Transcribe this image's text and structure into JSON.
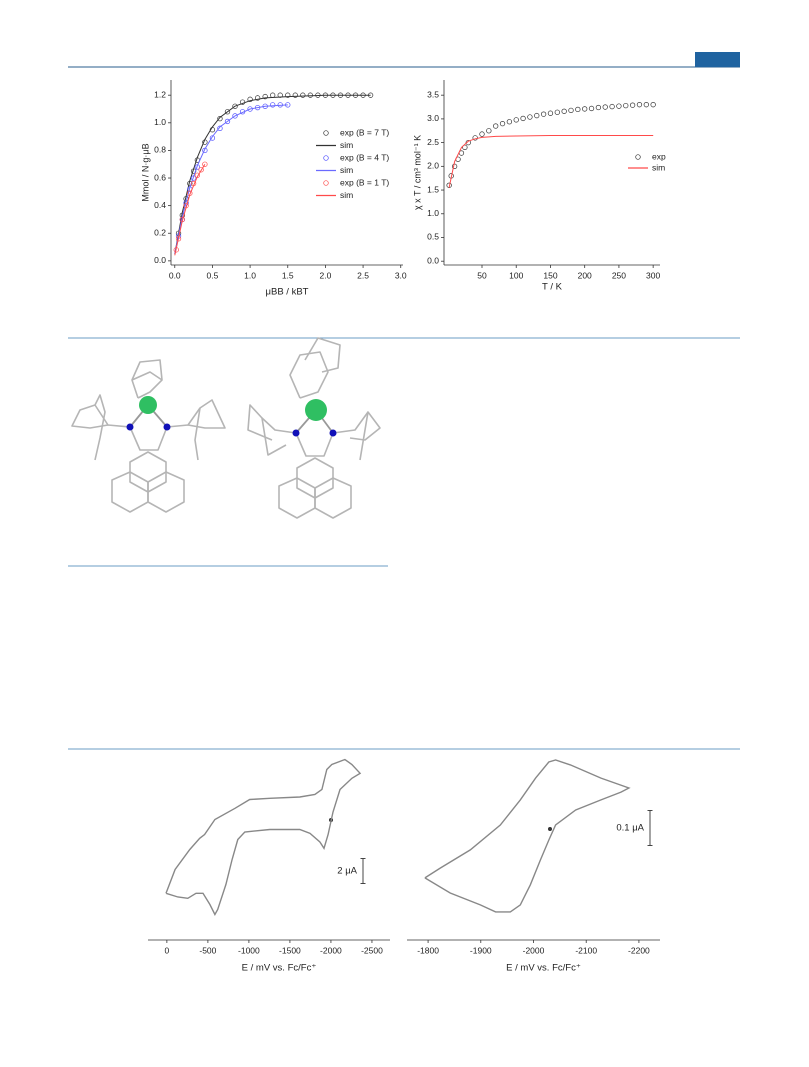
{
  "chart_data": [
    {
      "type": "scatter",
      "xlabel": "μBB / kBT",
      "ylabel": "Mmol / N·g·μB",
      "xlim": [
        -0.05,
        3.03
      ],
      "ylim": [
        -0.03,
        1.31
      ],
      "xticks": [
        {
          "value": 0,
          "label": "0.0"
        },
        0.5,
        {
          "value": 1,
          "label": "1.0"
        },
        1.5,
        {
          "value": 2,
          "label": "2.0"
        },
        2.5,
        {
          "value": 3,
          "label": "3.0"
        }
      ],
      "yticks": [
        {
          "value": 0,
          "label": "0.0"
        },
        0.2,
        0.4,
        0.6,
        0.8,
        {
          "value": 1,
          "label": "1.0"
        },
        1.2
      ],
      "legend": "right",
      "series": [
        {
          "name": "exp (B = 7 T)",
          "color": "#333333",
          "mode": "markers",
          "x": [
            0.05,
            0.1,
            0.15,
            0.2,
            0.25,
            0.3,
            0.4,
            0.5,
            0.6,
            0.7,
            0.8,
            0.9,
            1.0,
            1.1,
            1.2,
            1.3,
            1.4,
            1.5,
            1.6,
            1.7,
            1.8,
            1.9,
            2.0,
            2.1,
            2.2,
            2.3,
            2.4,
            2.5,
            2.6
          ],
          "values": [
            0.2,
            0.33,
            0.45,
            0.56,
            0.65,
            0.73,
            0.86,
            0.95,
            1.03,
            1.08,
            1.12,
            1.15,
            1.17,
            1.18,
            1.19,
            1.2,
            1.2,
            1.2,
            1.2,
            1.2,
            1.2,
            1.2,
            1.2,
            1.2,
            1.2,
            1.2,
            1.2,
            1.2,
            1.2
          ]
        },
        {
          "name": "sim",
          "color": "#333333",
          "mode": "line",
          "x": [
            0,
            0.1,
            0.2,
            0.3,
            0.4,
            0.5,
            0.6,
            0.8,
            1.0,
            1.2,
            1.5,
            2.0,
            2.6
          ],
          "values": [
            0.05,
            0.35,
            0.58,
            0.75,
            0.88,
            0.97,
            1.04,
            1.12,
            1.16,
            1.18,
            1.19,
            1.2,
            1.2
          ]
        },
        {
          "name": "exp (B = 4 T)",
          "color": "#4a4aff",
          "mode": "markers",
          "x": [
            0.05,
            0.1,
            0.15,
            0.2,
            0.25,
            0.3,
            0.4,
            0.5,
            0.6,
            0.7,
            0.8,
            0.9,
            1.0,
            1.1,
            1.2,
            1.3,
            1.4,
            1.5
          ],
          "values": [
            0.18,
            0.3,
            0.42,
            0.52,
            0.6,
            0.68,
            0.8,
            0.89,
            0.96,
            1.01,
            1.05,
            1.08,
            1.1,
            1.11,
            1.12,
            1.13,
            1.13,
            1.13
          ]
        },
        {
          "name": "sim",
          "color": "#6a6aff",
          "mode": "line",
          "x": [
            0,
            0.1,
            0.2,
            0.3,
            0.4,
            0.5,
            0.6,
            0.8,
            1.0,
            1.2,
            1.5
          ],
          "values": [
            0.05,
            0.32,
            0.53,
            0.69,
            0.81,
            0.9,
            0.97,
            1.05,
            1.1,
            1.12,
            1.13
          ]
        },
        {
          "name": "exp (B = 1 T)",
          "color": "#ff4a4a",
          "mode": "markers",
          "x": [
            0.02,
            0.05,
            0.1,
            0.15,
            0.2,
            0.25,
            0.3,
            0.35,
            0.4
          ],
          "values": [
            0.08,
            0.16,
            0.3,
            0.4,
            0.49,
            0.56,
            0.62,
            0.66,
            0.7
          ]
        },
        {
          "name": "sim",
          "color": "#ff4a4a",
          "mode": "line",
          "x": [
            0,
            0.1,
            0.2,
            0.3,
            0.4
          ],
          "values": [
            0.04,
            0.29,
            0.48,
            0.61,
            0.7
          ]
        }
      ]
    },
    {
      "type": "scatter",
      "xlabel": "T / K",
      "ylabel": "χ x T / cm³ mol⁻¹ K",
      "xlim": [
        -5.5,
        310
      ],
      "ylim": [
        -0.08,
        3.82
      ],
      "xticks": [
        50,
        100,
        150,
        200,
        250,
        300
      ],
      "yticks": [
        {
          "value": 0,
          "label": "0.0"
        },
        0.5,
        {
          "value": 1,
          "label": "1.0"
        },
        1.5,
        {
          "value": 2,
          "label": "2.0"
        },
        2.5,
        {
          "value": 3,
          "label": "3.0"
        },
        3.5
      ],
      "legend": "right",
      "series": [
        {
          "name": "exp",
          "color": "#333333",
          "mode": "markers",
          "x": [
            2,
            5,
            10,
            15,
            20,
            25,
            30,
            40,
            50,
            60,
            70,
            80,
            90,
            100,
            110,
            120,
            130,
            140,
            150,
            160,
            170,
            180,
            190,
            200,
            210,
            220,
            230,
            240,
            250,
            260,
            270,
            280,
            290,
            300
          ],
          "values": [
            1.6,
            1.8,
            2.0,
            2.15,
            2.28,
            2.4,
            2.5,
            2.6,
            2.68,
            2.75,
            2.85,
            2.9,
            2.94,
            2.98,
            3.01,
            3.04,
            3.07,
            3.1,
            3.12,
            3.14,
            3.16,
            3.18,
            3.2,
            3.21,
            3.22,
            3.24,
            3.25,
            3.26,
            3.27,
            3.28,
            3.29,
            3.3,
            3.3,
            3.3
          ]
        },
        {
          "name": "sim",
          "color": "#ff4a4a",
          "mode": "line",
          "x": [
            2,
            10,
            20,
            30,
            40,
            50,
            70,
            100,
            150,
            200,
            300
          ],
          "values": [
            1.55,
            2.1,
            2.4,
            2.53,
            2.58,
            2.61,
            2.63,
            2.64,
            2.65,
            2.65,
            2.65
          ]
        }
      ]
    },
    {
      "type": "line",
      "xlabel": "E / mV vs. Fc/Fc⁺",
      "xlim": [
        230,
        -2720
      ],
      "ylim": [
        -7,
        7
      ],
      "xticks": [
        0,
        -500,
        -1000,
        -1500,
        -2000,
        -2500
      ],
      "scale_bar": {
        "value": 2,
        "label": "2 μA"
      },
      "series": [
        {
          "color": "#888888",
          "mode": "line",
          "x": [
            10,
            -100,
            -280,
            -400,
            -460,
            -585,
            -830,
            -1010,
            -1255,
            -1620,
            -1805,
            -1890,
            -1950,
            -2010,
            -2170,
            -2255,
            -2355,
            -2255,
            -2110,
            -2025,
            -1965,
            -1915,
            -1865,
            -1745,
            -1620,
            -1255,
            -950,
            -865,
            -795,
            -720,
            -620,
            -585,
            -525,
            -440,
            -355,
            -255,
            -135,
            10
          ],
          "values": [
            -4.7,
            -2.8,
            -1.2,
            -0.3,
            0,
            1.2,
            2.1,
            2.8,
            2.9,
            3.0,
            3.2,
            3.6,
            5.2,
            5.6,
            6.0,
            5.6,
            4.9,
            4.5,
            3.6,
            1.8,
            0,
            -1.1,
            -0.6,
            0.1,
            0.4,
            0.4,
            0.2,
            -0.4,
            -2.0,
            -4.0,
            -6.0,
            -6.4,
            -5.6,
            -4.7,
            -4.7,
            -5.1,
            -5.0,
            -4.7
          ]
        }
      ]
    },
    {
      "type": "line",
      "xlabel": "E / mV vs. Fc/Fc⁺",
      "xlim": [
        -1760,
        -2240
      ],
      "ylim": [
        -0.25,
        0.25
      ],
      "xticks": [
        -1800,
        -1900,
        -2000,
        -2100,
        -2200
      ],
      "scale_bar": {
        "value": 0.1,
        "label": "0.1 μA"
      },
      "series": [
        {
          "color": "#888888",
          "mode": "line",
          "x": [
            -1794,
            -1823,
            -1880,
            -1937,
            -1975,
            -2004,
            -2029,
            -2042,
            -2070,
            -2128,
            -2181,
            -2166,
            -2128,
            -2080,
            -2042,
            -2029,
            -2013,
            -1994,
            -1975,
            -1956,
            -1928,
            -1899,
            -1842,
            -1794
          ],
          "values": [
            -0.124,
            -0.096,
            -0.044,
            0.027,
            0.099,
            0.161,
            0.207,
            0.213,
            0.199,
            0.161,
            0.133,
            0.121,
            0.099,
            0.07,
            0.027,
            -0.016,
            -0.073,
            -0.144,
            -0.201,
            -0.221,
            -0.221,
            -0.201,
            -0.167,
            -0.124
          ]
        }
      ]
    }
  ]
}
